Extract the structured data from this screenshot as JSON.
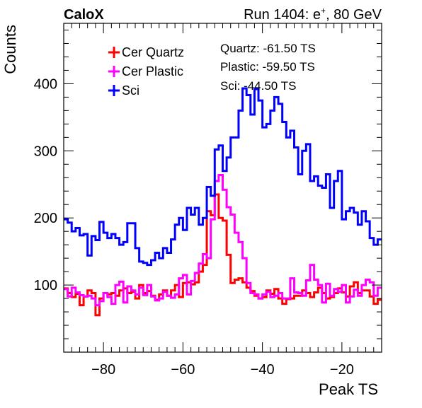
{
  "header": {
    "experiment": "CaloX",
    "run_info_prefix": "Run 1404: e",
    "run_info_sup": "+",
    "run_info_suffix": ", 80 GeV"
  },
  "annotations": [
    "Quartz: -61.50 TS",
    "Plastic: -59.50 TS",
    "Sci: -44.50 TS"
  ],
  "chart_data": {
    "type": "histogram",
    "title": "",
    "xlabel": "Peak TS",
    "ylabel": "Counts",
    "xlim": [
      -90,
      -10
    ],
    "ylim": [
      0,
      490
    ],
    "x_ticks": [
      -80,
      -60,
      -40,
      -20
    ],
    "y_ticks": [
      100,
      200,
      300,
      400
    ],
    "bin_width": 1,
    "legend_position": "top-left",
    "series": [
      {
        "name": "Cer Quartz",
        "color": "#ff0000",
        "values": [
          95,
          88,
          82,
          87,
          70,
          83,
          92,
          88,
          55,
          80,
          88,
          86,
          88,
          84,
          92,
          95,
          88,
          90,
          80,
          100,
          88,
          91,
          84,
          78,
          86,
          92,
          84,
          92,
          100,
          82,
          103,
          104,
          101,
          104,
          120,
          130,
          210,
          204,
          235,
          200,
          196,
          145,
          103,
          108,
          110,
          104,
          96,
          91,
          84,
          80,
          82,
          92,
          87,
          94,
          80,
          72,
          79,
          80,
          84,
          84,
          92,
          88,
          82,
          89,
          96,
          88,
          80,
          82,
          88,
          95,
          89,
          83,
          98,
          104,
          88,
          92,
          92,
          83,
          72,
          78
        ]
      },
      {
        "name": "Cer Plastic",
        "color": "#ff00ff",
        "values": [
          94,
          83,
          96,
          89,
          85,
          83,
          84,
          80,
          70,
          76,
          88,
          82,
          72,
          100,
          105,
          74,
          98,
          92,
          86,
          96,
          85,
          100,
          83,
          77,
          80,
          90,
          84,
          81,
          86,
          110,
          115,
          86,
          106,
          118,
          132,
          146,
          140,
          198,
          255,
          264,
          242,
          216,
          205,
          178,
          164,
          140,
          103,
          88,
          86,
          80,
          86,
          90,
          82,
          84,
          88,
          80,
          80,
          110,
          89,
          88,
          84,
          107,
          130,
          108,
          100,
          74,
          102,
          84,
          94,
          90,
          100,
          74,
          83,
          93,
          84,
          100,
          108,
          104,
          84,
          96
        ]
      },
      {
        "name": "Sci",
        "color": "#0000ff",
        "values": [
          198,
          193,
          180,
          185,
          174,
          176,
          144,
          173,
          167,
          194,
          178,
          170,
          176,
          170,
          160,
          164,
          192,
          192,
          155,
          135,
          133,
          130,
          137,
          148,
          140,
          155,
          148,
          168,
          190,
          200,
          182,
          215,
          205,
          215,
          190,
          200,
          246,
          233,
          302,
          308,
          270,
          290,
          320,
          320,
          360,
          393,
          383,
          354,
          392,
          375,
          335,
          340,
          360,
          380,
          370,
          343,
          320,
          330,
          305,
          265,
          300,
          310,
          255,
          262,
          248,
          245,
          265,
          215,
          255,
          270,
          198,
          210,
          215,
          208,
          190,
          210,
          195,
          170,
          160,
          168
        ]
      }
    ]
  }
}
